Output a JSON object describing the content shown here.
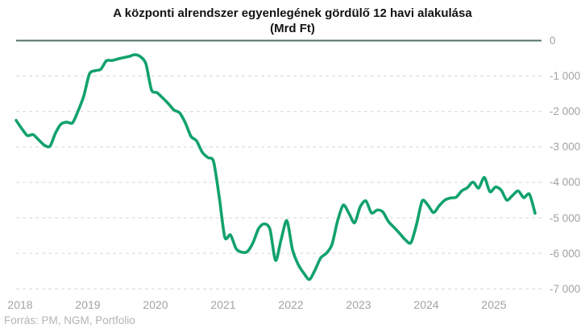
{
  "title": {
    "line1": "A központi alrendszer egyenlegének gördülő 12 havi alakulása",
    "line2": "(Mrd Ft)"
  },
  "source_note": "Forrás: PM, NGM, Portfolio",
  "colors": {
    "line": "#12a26c",
    "zero_line": "#4e7265",
    "grid_line": "#d7d7d7",
    "axis_text": "#a2a2a2",
    "title_text": "#121212",
    "source_text": "#b4b4b4"
  },
  "chart_data": {
    "type": "line",
    "title": "A központi alrendszer egyenlegének gördülő 12 havi alakulása",
    "subtitle": "(Mrd Ft)",
    "ylabel": "Mrd Ft",
    "ylim": [
      -7000,
      0
    ],
    "grid": "horizontal-dashed",
    "legend_position": "none",
    "x_start": "2018-01",
    "x_end": "2025-09",
    "frequency": "monthly",
    "x_tick_labels": [
      "2018",
      "2019",
      "2020",
      "2021",
      "2022",
      "2023",
      "2024",
      "2025"
    ],
    "y_tick_labels": [
      "0",
      "-1 000",
      "-2 000",
      "-3 000",
      "-4 000",
      "-5 000",
      "-6 000",
      "-7 000"
    ],
    "y_tick_values": [
      0,
      -1000,
      -2000,
      -3000,
      -4000,
      -5000,
      -6000,
      -7000
    ],
    "series": [
      {
        "name": "Központi alrendszer egyenlege, gördülő 12 havi (Mrd Ft)",
        "values": [
          -2250,
          -2480,
          -2680,
          -2650,
          -2800,
          -2950,
          -2980,
          -2600,
          -2350,
          -2300,
          -2320,
          -1980,
          -1560,
          -940,
          -850,
          -810,
          -570,
          -560,
          -520,
          -480,
          -450,
          -400,
          -450,
          -650,
          -1390,
          -1470,
          -1620,
          -1780,
          -1960,
          -2040,
          -2320,
          -2700,
          -2830,
          -3150,
          -3300,
          -3410,
          -4400,
          -5550,
          -5480,
          -5870,
          -5970,
          -5950,
          -5700,
          -5300,
          -5170,
          -5320,
          -6200,
          -5600,
          -5080,
          -5900,
          -6310,
          -6560,
          -6740,
          -6470,
          -6130,
          -6000,
          -5750,
          -5080,
          -4640,
          -4870,
          -5140,
          -4690,
          -4520,
          -4860,
          -4780,
          -4830,
          -5100,
          -5270,
          -5440,
          -5620,
          -5700,
          -5180,
          -4520,
          -4640,
          -4850,
          -4660,
          -4500,
          -4440,
          -4420,
          -4240,
          -4150,
          -3990,
          -4160,
          -3860,
          -4260,
          -4130,
          -4220,
          -4500,
          -4370,
          -4240,
          -4430,
          -4330,
          -4870
        ]
      }
    ]
  }
}
